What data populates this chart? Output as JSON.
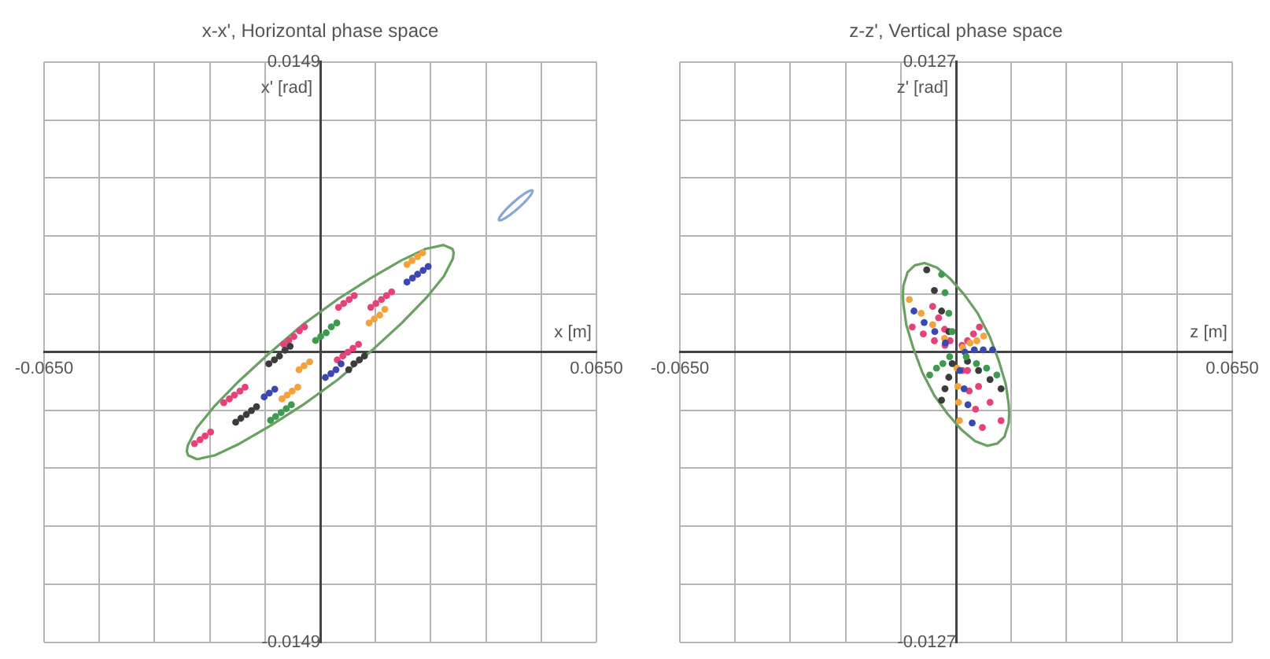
{
  "chart_data": [
    {
      "type": "scatter",
      "title": "x-x', Horizontal phase space",
      "xlabel": "x [m]",
      "ylabel": "x' [rad]",
      "xlim": [
        -0.065,
        0.065
      ],
      "ylim": [
        -0.0149,
        0.0149
      ],
      "xticks": [
        {
          "value": -0.065,
          "label": "-0.0650"
        },
        {
          "value": -0.052,
          "label": null
        },
        {
          "value": -0.039,
          "label": null
        },
        {
          "value": -0.026,
          "label": null
        },
        {
          "value": -0.013,
          "label": null
        },
        {
          "value": 0,
          "label": null
        },
        {
          "value": 0.013,
          "label": null
        },
        {
          "value": 0.026,
          "label": null
        },
        {
          "value": 0.039,
          "label": null
        },
        {
          "value": 0.052,
          "label": null
        },
        {
          "value": 0.065,
          "label": "0.0650"
        }
      ],
      "yticks": [
        -0.0149,
        {
          "value": -0.01192,
          "label": null
        },
        {
          "value": -0.00894,
          "label": null
        },
        {
          "value": -0.00596,
          "label": null
        },
        {
          "value": -0.00298,
          "label": null
        },
        {
          "value": 0,
          "label": null
        },
        {
          "value": 0.00298,
          "label": null
        },
        {
          "value": 0.00596,
          "label": null
        },
        {
          "value": 0.00894,
          "label": null
        },
        {
          "value": 0.01192,
          "label": null
        },
        0.0149
      ],
      "grid": true,
      "marker": "circle",
      "series": [
        {
          "type": "line",
          "marker": "none",
          "color": "#6aa062",
          "x": [
            -0.0314,
            -0.0312,
            -0.0291,
            -0.025,
            -0.0192,
            -0.0122,
            -0.0042,
            0.004,
            0.0119,
            0.019,
            0.0248,
            0.029,
            0.0311,
            0.0314,
            null,
            -0.0314,
            -0.0311,
            -0.029,
            -0.0248,
            -0.019,
            -0.0119,
            -0.004,
            0.0042,
            0.0122,
            0.0192,
            0.025,
            0.0291,
            0.0312,
            0.0314
          ],
          "values": [
            -0.0051,
            -0.0048,
            -0.0039,
            -0.0028,
            -0.0015,
            -0.0001,
            0.0014,
            0.0027,
            0.0038,
            0.0047,
            0.0053,
            0.0055,
            0.0053,
            0.0051,
            null,
            -0.0051,
            -0.0053,
            -0.0055,
            -0.0053,
            -0.0047,
            -0.0038,
            -0.0027,
            -0.0014,
            0.0001,
            0.0015,
            0.0028,
            0.0039,
            0.0048,
            0.0051
          ]
        },
        {
          "color": "#e6427a",
          "x": [
            0.0043,
            0.0055,
            0.0068,
            0.008,
            0.0119,
            0.0131,
            0.0144,
            0.0156,
            0.0168,
            -0.0086,
            -0.0074,
            -0.0062,
            -0.0049,
            -0.0037,
            0.004,
            0.0053,
            0.0065,
            0.0077,
            0.009,
            -0.0227,
            -0.0214,
            -0.0202,
            -0.0189,
            -0.0177,
            -0.0296,
            -0.0283,
            -0.0271,
            -0.0258
          ],
          "values": [
            0.0023,
            0.0025,
            0.0027,
            0.0029,
            0.0023,
            0.0025,
            0.0027,
            0.0029,
            0.0031,
            0.0004,
            0.0006,
            0.0008,
            0.0011,
            0.0013,
            -0.0004,
            -0.0002,
            0,
            0.0002,
            0.0004,
            -0.0026,
            -0.0024,
            -0.0022,
            -0.002,
            -0.0018,
            -0.0047,
            -0.0045,
            -0.0043,
            -0.0041
          ]
        },
        {
          "color": "#3b48b0",
          "x": [
            0.0204,
            0.0217,
            0.0229,
            0.0242,
            0.0254,
            0.0012,
            0.0025,
            0.0037,
            0.0049,
            -0.0132,
            -0.012,
            -0.0107
          ],
          "values": [
            0.0036,
            0.0038,
            0.004,
            0.0042,
            0.0044,
            -0.0013,
            -0.0011,
            -0.0009,
            -0.0006,
            -0.0023,
            -0.0021,
            -0.0019
          ]
        },
        {
          "color": "#f2a33c",
          "x": [
            0.0204,
            0.0216,
            0.0229,
            0.0241,
            0.0115,
            0.0127,
            0.014,
            0.0152,
            -0.009,
            -0.0078,
            -0.0066,
            -0.0053,
            -0.005,
            -0.0038,
            -0.0025
          ],
          "values": [
            0.0045,
            0.0047,
            0.0049,
            0.0051,
            0.0015,
            0.0017,
            0.0019,
            0.0022,
            -0.0024,
            -0.0022,
            -0.002,
            -0.0018,
            -0.0009,
            -0.0007,
            -0.0005
          ]
        },
        {
          "color": "#3c3c3c",
          "x": [
            -0.0121,
            -0.0108,
            -0.0096,
            -0.0083,
            -0.0071,
            0.0067,
            0.0079,
            0.0092,
            0.0104,
            -0.0199,
            -0.0187,
            -0.0174,
            -0.0162,
            -0.015
          ],
          "values": [
            -0.0006,
            -0.0004,
            -0.0002,
            0.0001,
            0.0003,
            -0.0009,
            -0.0006,
            -0.0004,
            -0.0002,
            -0.0036,
            -0.0034,
            -0.0032,
            -0.003,
            -0.0028
          ]
        },
        {
          "color": "#3e9a4f",
          "x": [
            -0.0011,
            0.0001,
            0.0014,
            0.0026,
            0.0039,
            -0.0117,
            -0.0105,
            -0.0092,
            -0.008,
            -0.0068
          ],
          "values": [
            0.0006,
            0.0008,
            0.001,
            0.0013,
            0.0015,
            -0.0035,
            -0.0033,
            -0.0031,
            -0.0029,
            -0.0027
          ]
        }
      ]
    },
    {
      "type": "scatter",
      "title": "z-z', Vertical phase space",
      "xlabel": "z [m]",
      "ylabel": "z' [rad]",
      "xlim": [
        -0.065,
        0.065
      ],
      "ylim": [
        -0.0127,
        0.0127
      ],
      "xticks": [
        {
          "value": -0.065,
          "label": "-0.0650"
        },
        {
          "value": -0.052,
          "label": null
        },
        {
          "value": -0.039,
          "label": null
        },
        {
          "value": -0.026,
          "label": null
        },
        {
          "value": -0.013,
          "label": null
        },
        {
          "value": 0,
          "label": null
        },
        {
          "value": 0.013,
          "label": null
        },
        {
          "value": 0.026,
          "label": null
        },
        {
          "value": 0.039,
          "label": null
        },
        {
          "value": 0.052,
          "label": null
        },
        {
          "value": 0.065,
          "label": "0.0650"
        }
      ],
      "yticks": [
        -0.0127,
        {
          "value": -0.01016,
          "label": null
        },
        {
          "value": -0.00762,
          "label": null
        },
        {
          "value": -0.00508,
          "label": null
        },
        {
          "value": -0.00254,
          "label": null
        },
        {
          "value": 0,
          "label": null
        },
        {
          "value": 0.00254,
          "label": null
        },
        {
          "value": 0.00508,
          "label": null
        },
        {
          "value": 0.00762,
          "label": null
        },
        {
          "value": 0.01016,
          "label": null
        },
        0.0127
      ],
      "grid": true,
      "marker": "circle",
      "series": [
        {
          "type": "line",
          "marker": "none",
          "color": "#6aa062",
          "x": [
            -0.0125,
            -0.0124,
            -0.0114,
            -0.0097,
            -0.0074,
            -0.0045,
            -0.0013,
            0.002,
            0.0051,
            0.0079,
            0.0101,
            0.0117,
            0.0124,
            0.0125,
            null,
            -0.0125,
            -0.0124,
            -0.0117,
            -0.0101,
            -0.0079,
            -0.0051,
            -0.002,
            0.0013,
            0.0045,
            0.0074,
            0.0097,
            0.0114,
            0.0124,
            0.0125
          ],
          "values": [
            0.0025,
            0.0029,
            0.0035,
            0.0038,
            0.0039,
            0.0037,
            0.0032,
            0.0025,
            0.0017,
            0.0007,
            -0.0004,
            -0.0014,
            -0.0023,
            -0.0027,
            null,
            0.0025,
            0.0021,
            0.0012,
            0.0002,
            -0.0009,
            -0.0019,
            -0.0027,
            -0.0034,
            -0.0039,
            -0.0041,
            -0.004,
            -0.0037,
            -0.0031,
            -0.0027
          ]
        },
        {
          "color": "#e6427a",
          "x": [
            -0.0026,
            -0.0051,
            -0.0077,
            -0.0103,
            0.0014,
            0.0027,
            0.0041,
            0.0055,
            0.0027,
            0.0053,
            0.008,
            0.0106,
            0.0015,
            0.0031,
            0.0046,
            0.0062,
            -0.0014,
            -0.0027,
            -0.0041,
            -0.0055
          ],
          "values": [
            0.0003,
            0.0005,
            0.0008,
            0.0011,
            0.0003,
            0.0005,
            0.0008,
            0.0011,
            -0.0008,
            -0.0015,
            -0.0022,
            -0.003,
            -0.0008,
            -0.0017,
            -0.0025,
            -0.0033,
            0.0005,
            0.001,
            0.0015,
            0.002
          ]
        },
        {
          "color": "#f2a33c",
          "x": [
            -0.0027,
            -0.0055,
            -0.0082,
            -0.011,
            0.0002,
            0.0004,
            0.0006,
            0.0008,
            0.0016,
            0.0033,
            0.0049,
            0.0065
          ],
          "values": [
            0.0006,
            0.0012,
            0.0017,
            0.0023,
            -0.0007,
            -0.0015,
            -0.0022,
            -0.003,
            0.0002,
            0.0004,
            0.0005,
            0.0007
          ]
        },
        {
          "color": "#3b48b0",
          "x": [
            -0.0025,
            -0.005,
            -0.0075,
            -0.0099,
            0.0021,
            0.0043,
            0.0064,
            0.0086,
            0.0009,
            0.0019,
            0.0028,
            0.0038
          ],
          "values": [
            0.0004,
            0.0009,
            0.0013,
            0.0018,
            0,
            0.0001,
            0.0001,
            0.0001,
            -0.0008,
            -0.0016,
            -0.0023,
            -0.0031
          ]
        },
        {
          "color": "#3c3c3c",
          "x": [
            -0.0017,
            -0.0034,
            -0.0051,
            -0.0069,
            0.0027,
            0.0053,
            0.008,
            0.0106,
            -0.0009,
            -0.0017,
            -0.0026,
            -0.0034
          ],
          "values": [
            0.0009,
            0.0018,
            0.0027,
            0.0036,
            -0.0004,
            -0.0008,
            -0.0012,
            -0.0016,
            -0.0005,
            -0.0011,
            -0.0016,
            -0.0021
          ]
        },
        {
          "color": "#3e9a4f",
          "x": [
            -0.0009,
            -0.0017,
            -0.0026,
            -0.0034,
            -0.0015,
            -0.0031,
            -0.0046,
            -0.0062,
            0.0024,
            0.0048,
            0.0072,
            0.0096
          ],
          "values": [
            0.0009,
            0.0017,
            0.0026,
            0.0034,
            -0.0002,
            -0.0005,
            -0.0007,
            -0.001,
            -0.0002,
            -0.0005,
            -0.0007,
            -0.001
          ]
        }
      ]
    }
  ]
}
